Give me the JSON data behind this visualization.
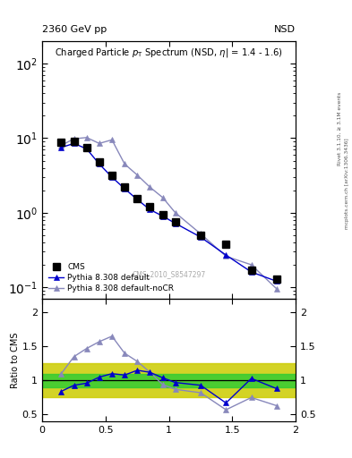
{
  "title_left": "2360 GeV pp",
  "title_right": "NSD",
  "watermark": "CMS_2010_S8547297",
  "cms_x": [
    0.15,
    0.25,
    0.35,
    0.45,
    0.55,
    0.65,
    0.75,
    0.85,
    0.95,
    1.05,
    1.25,
    1.45,
    1.65,
    1.85
  ],
  "cms_y": [
    8.8,
    9.0,
    7.5,
    4.8,
    3.2,
    2.2,
    1.55,
    1.2,
    0.95,
    0.75,
    0.5,
    0.38,
    0.17,
    0.13
  ],
  "py_default_x": [
    0.15,
    0.25,
    0.35,
    0.45,
    0.55,
    0.65,
    0.75,
    0.85,
    0.95,
    1.05,
    1.25,
    1.45,
    1.65,
    1.85
  ],
  "py_default_y": [
    7.5,
    8.5,
    7.2,
    4.5,
    3.0,
    2.1,
    1.5,
    1.1,
    0.9,
    0.72,
    0.47,
    0.27,
    0.16,
    0.12
  ],
  "py_nocr_x": [
    0.15,
    0.25,
    0.35,
    0.45,
    0.55,
    0.65,
    0.75,
    0.85,
    0.95,
    1.05,
    1.25,
    1.45,
    1.65,
    1.85
  ],
  "py_nocr_y": [
    8.0,
    9.8,
    10.2,
    8.5,
    9.5,
    4.5,
    3.2,
    2.2,
    1.6,
    1.0,
    0.52,
    0.26,
    0.2,
    0.095
  ],
  "ratio_default_y": [
    0.84,
    0.93,
    0.96,
    1.05,
    1.1,
    1.08,
    1.15,
    1.12,
    1.04,
    0.97,
    0.93,
    0.67,
    1.03,
    0.88
  ],
  "ratio_nocr_y": [
    1.1,
    1.35,
    1.47,
    1.57,
    1.65,
    1.4,
    1.28,
    1.12,
    0.94,
    0.87,
    0.82,
    0.57,
    0.75,
    0.63
  ],
  "band_yellow_lo": 0.75,
  "band_yellow_hi": 1.25,
  "band_green_lo": 0.9,
  "band_green_hi": 1.1,
  "color_cms": "#000000",
  "color_default": "#0000cc",
  "color_nocr": "#8888bb",
  "color_green": "#33cc33",
  "color_yellow": "#cccc00",
  "xlim": [
    0.0,
    2.0
  ],
  "ylim_main": [
    0.07,
    200
  ],
  "ylim_ratio": [
    0.4,
    2.2
  ],
  "ylabel_ratio": "Ratio to CMS"
}
